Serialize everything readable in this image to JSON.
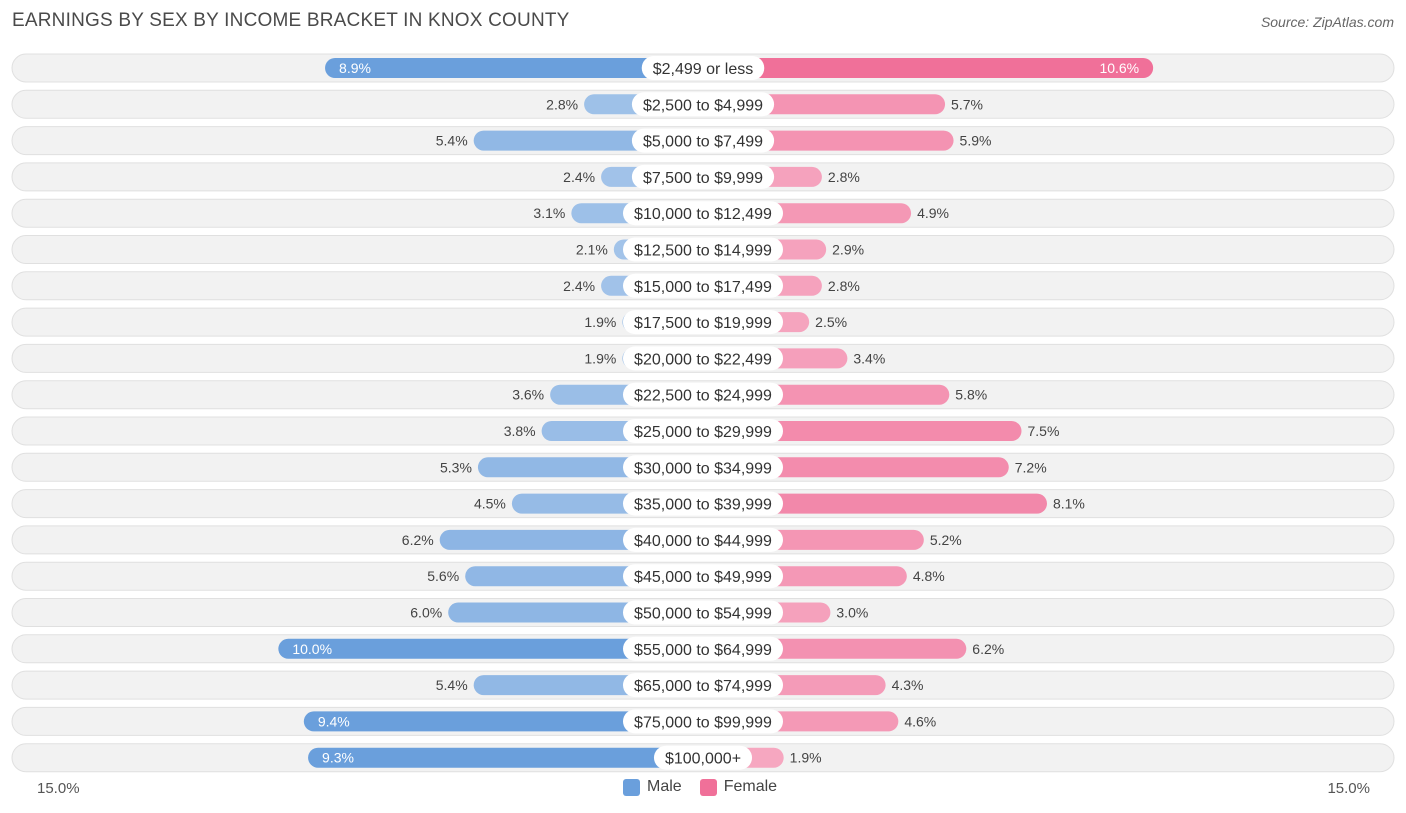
{
  "chart_data": {
    "type": "bar",
    "orientation": "horizontal-diverging",
    "title": "EARNINGS BY SEX BY INCOME BRACKET IN KNOX COUNTY",
    "source": "Source: ZipAtlas.com",
    "categories": [
      "$2,499 or less",
      "$2,500 to $4,999",
      "$5,000 to $7,499",
      "$7,500 to $9,999",
      "$10,000 to $12,499",
      "$12,500 to $14,999",
      "$15,000 to $17,499",
      "$17,500 to $19,999",
      "$20,000 to $22,499",
      "$22,500 to $24,999",
      "$25,000 to $29,999",
      "$30,000 to $34,999",
      "$35,000 to $39,999",
      "$40,000 to $44,999",
      "$45,000 to $49,999",
      "$50,000 to $54,999",
      "$55,000 to $64,999",
      "$65,000 to $74,999",
      "$75,000 to $99,999",
      "$100,000+"
    ],
    "series": [
      {
        "name": "Male",
        "color": "#6a9fdc",
        "values": [
          8.9,
          2.8,
          5.4,
          2.4,
          3.1,
          2.1,
          2.4,
          1.9,
          1.9,
          3.6,
          3.8,
          5.3,
          4.5,
          6.2,
          5.6,
          6.0,
          10.0,
          5.4,
          9.4,
          9.3
        ],
        "labels": [
          "8.9%",
          "2.8%",
          "5.4%",
          "2.4%",
          "3.1%",
          "2.1%",
          "2.4%",
          "1.9%",
          "1.9%",
          "3.6%",
          "3.8%",
          "5.3%",
          "4.5%",
          "6.2%",
          "5.6%",
          "6.0%",
          "10.0%",
          "5.4%",
          "9.4%",
          "9.3%"
        ]
      },
      {
        "name": "Female",
        "color": "#f07099",
        "values": [
          10.6,
          5.7,
          5.9,
          2.8,
          4.9,
          2.9,
          2.8,
          2.5,
          3.4,
          5.8,
          7.5,
          7.2,
          8.1,
          5.2,
          4.8,
          3.0,
          6.2,
          4.3,
          4.6,
          1.9
        ],
        "labels": [
          "10.6%",
          "5.7%",
          "5.9%",
          "2.8%",
          "4.9%",
          "2.9%",
          "2.8%",
          "2.5%",
          "3.4%",
          "5.8%",
          "7.5%",
          "7.2%",
          "8.1%",
          "5.2%",
          "4.8%",
          "3.0%",
          "6.2%",
          "4.3%",
          "4.6%",
          "1.9%"
        ]
      }
    ],
    "xlim": [
      -15,
      15
    ],
    "axis_min_label": "15.0%",
    "axis_max_label": "15.0%",
    "legend": [
      "Male",
      "Female"
    ],
    "legend_position": "bottom-center"
  }
}
